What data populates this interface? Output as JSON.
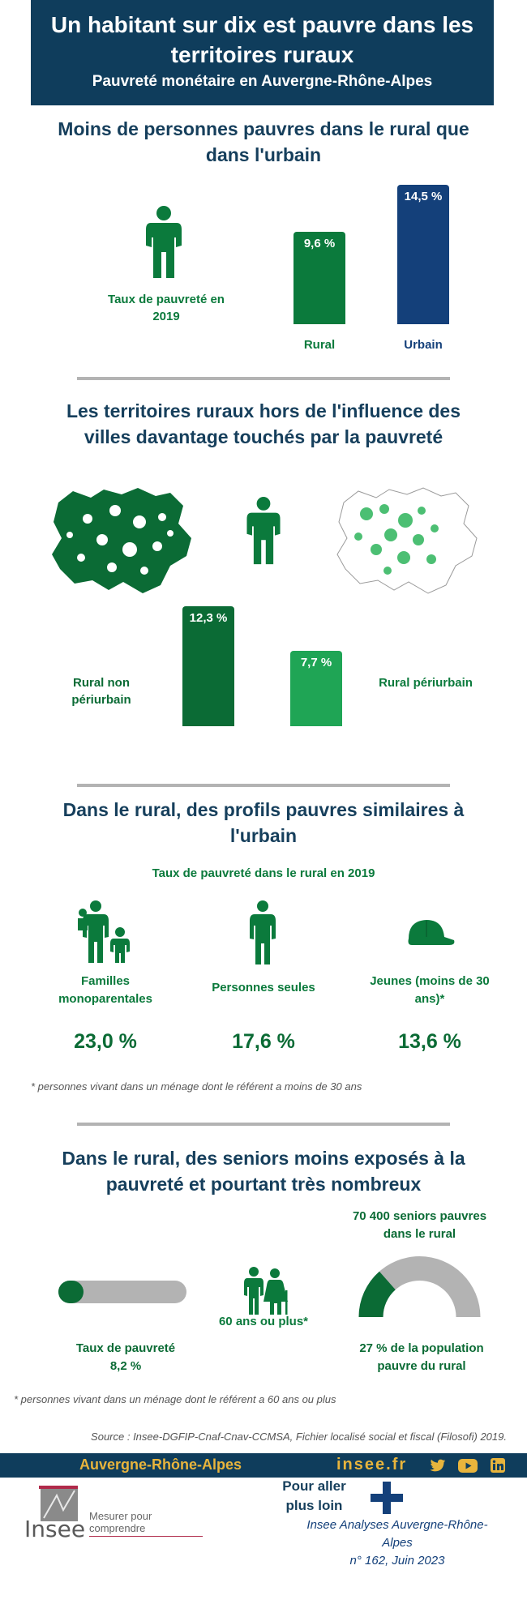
{
  "header": {
    "title": "Un habitant sur dix est pauvre dans les territoires ruraux",
    "subtitle": "Pauvreté monétaire en Auvergne-Rhône-Alpes"
  },
  "section1": {
    "title": "Moins de personnes pauvres dans le rural que dans l'urbain",
    "indicator": "Taux de pauvreté en 2019",
    "chart_data": {
      "type": "bar",
      "categories": [
        "Rural",
        "Urbain"
      ],
      "values": [
        9.6,
        14.5
      ],
      "value_labels": [
        "9,6 %",
        "14,5 %"
      ],
      "colors": [
        "#0b7a3c",
        "#14407a"
      ]
    }
  },
  "section2": {
    "title": "Les territoires ruraux hors de l'influence des villes davantage touchés par la pauvreté",
    "left_label": "Rural non périurbain",
    "right_label": "Rural périurbain",
    "chart_data": {
      "type": "bar",
      "categories": [
        "Rural non périurbain",
        "Rural périurbain"
      ],
      "values": [
        12.3,
        7.7
      ],
      "value_labels": [
        "12,3 %",
        "7,7 %"
      ],
      "colors": [
        "#0b6b35",
        "#1fa555"
      ]
    }
  },
  "section3": {
    "title": "Dans le rural, des profils pauvres similaires à l'urbain",
    "subtitle": "Taux de pauvreté dans le rural en 2019",
    "profiles": [
      {
        "label": "Familles monoparentales",
        "value": "23,0 %",
        "icon": "family-icon"
      },
      {
        "label": "Personnes seules",
        "value": "17,6 %",
        "icon": "person-icon"
      },
      {
        "label": "Jeunes (moins de  30 ans)*",
        "value": "13,6 %",
        "icon": "cap-icon"
      }
    ],
    "note": "* personnes vivant dans un ménage dont le référent a moins de 30 ans"
  },
  "section4": {
    "title": "Dans le rural, des seniors moins exposés à la pauvreté et pourtant très nombreux",
    "rate_label": "Taux de pauvreté",
    "rate_value": "8,2 %",
    "rate_fraction": 0.082,
    "seniors_label": "60 ans ou plus*",
    "count_label": "70 400 seniors pauvres dans le rural",
    "share_label": "27 % de la population pauvre du rural",
    "share_fraction": 0.27,
    "note": "* personnes vivant dans un ménage dont le référent a 60 ans ou plus"
  },
  "source": "Source : Insee-DGFIP-Cnaf-Cnav-CCMSA, Fichier localisé social et fiscal (Filosofi) 2019.",
  "footer": {
    "region": "Auvergne-Rhône-Alpes",
    "site": "insee.fr",
    "logo_text": "Insee",
    "tagline": "Mesurer pour comprendre",
    "more": "Pour aller plus loin",
    "publication": "Insee Analyses Auvergne-Rhône-Alpes",
    "issue": "n° 162, Juin 2023"
  },
  "colors": {
    "navy": "#0f3d5c",
    "green": "#0b7a3c",
    "dark_green": "#0b6b35",
    "light_green": "#1fa555",
    "urban_blue": "#14407a",
    "gold": "#e8b43c",
    "grey": "#b3b3b3"
  }
}
